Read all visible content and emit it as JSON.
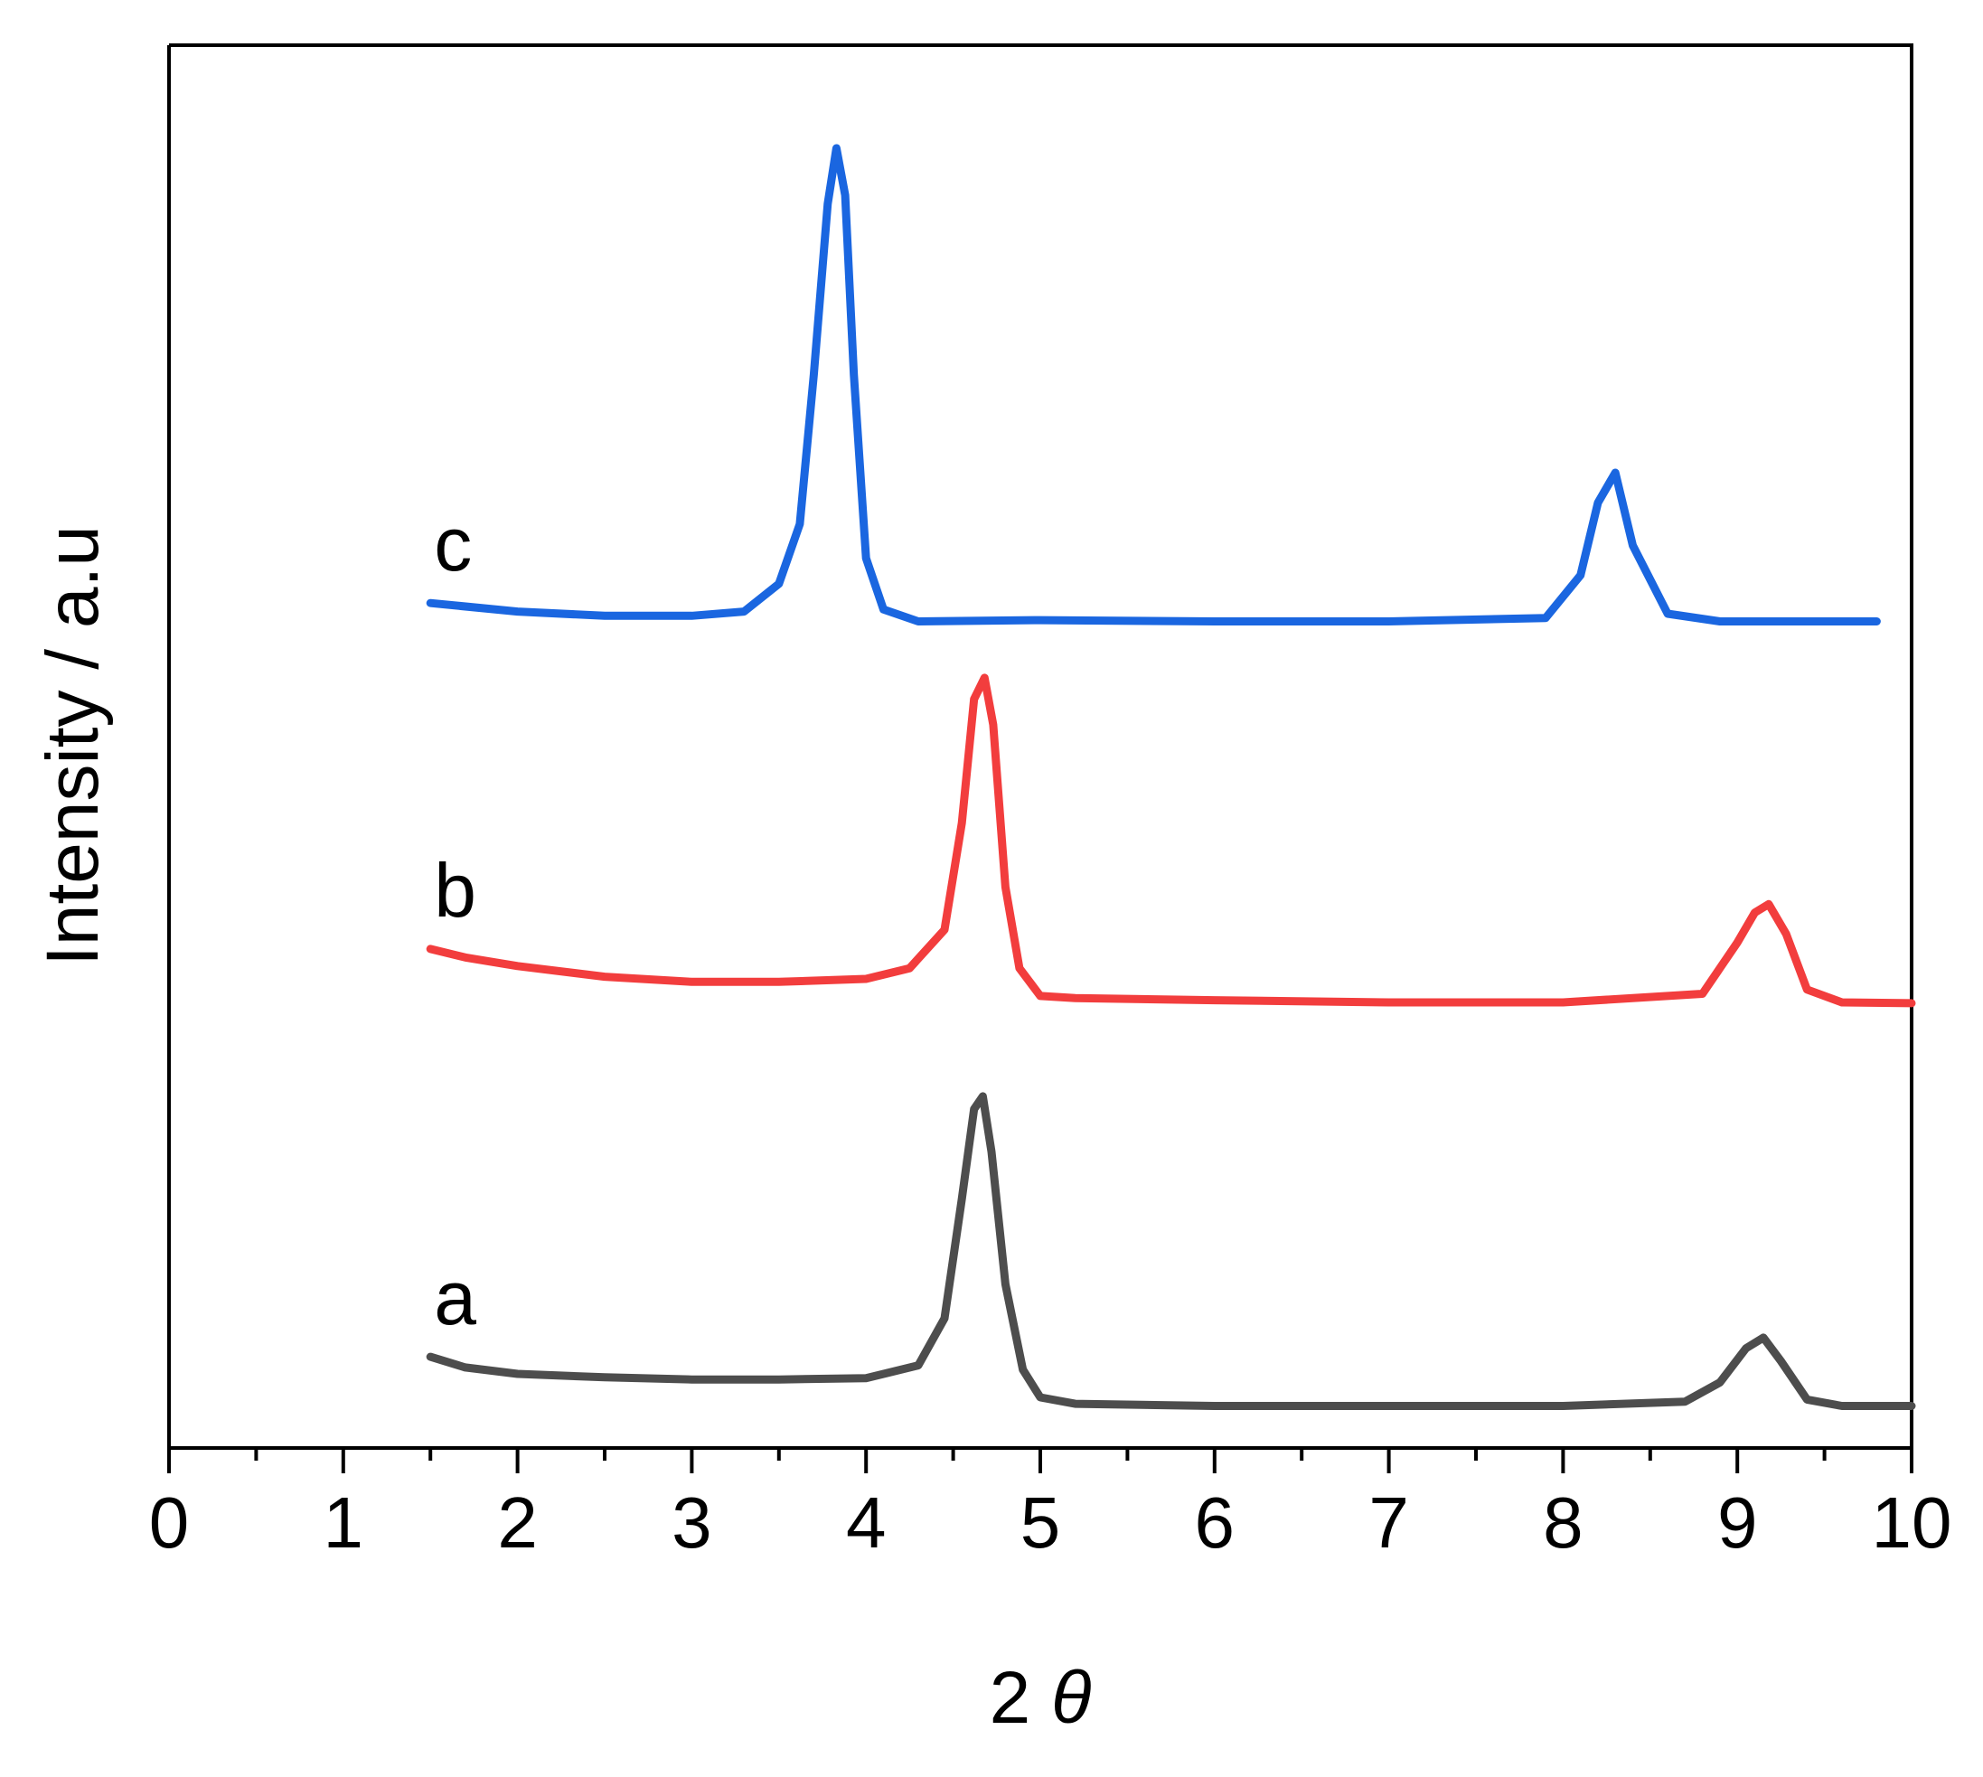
{
  "chart_data": {
    "type": "line",
    "xlabel": "2 θ",
    "ylabel": "Intensity / a.u",
    "xlim": [
      0,
      10
    ],
    "x_ticks": [
      "0",
      "1",
      "2",
      "3",
      "4",
      "5",
      "6",
      "7",
      "8",
      "9",
      "10"
    ],
    "y_ticks_shown": false,
    "grid": false,
    "legend": "inline labels",
    "series": [
      {
        "name": "a",
        "color": "#4d4d4d",
        "x": [
          1.5,
          1.7,
          2.0,
          2.5,
          3.0,
          3.5,
          4.0,
          4.3,
          4.45,
          4.55,
          4.62,
          4.67,
          4.72,
          4.8,
          4.9,
          5.0,
          5.2,
          6.0,
          7.0,
          8.0,
          8.7,
          8.9,
          9.05,
          9.15,
          9.25,
          9.4,
          9.6,
          10.0
        ],
        "y": [
          1.5,
          1.25,
          1.1,
          1.02,
          0.97,
          0.97,
          1.0,
          1.3,
          2.4,
          5.2,
          7.3,
          7.6,
          6.3,
          3.2,
          1.2,
          0.55,
          0.4,
          0.35,
          0.35,
          0.35,
          0.45,
          0.9,
          1.7,
          1.95,
          1.4,
          0.5,
          0.35,
          0.35
        ]
      },
      {
        "name": "b",
        "color": "#f23d3d",
        "x": [
          1.5,
          1.7,
          2.0,
          2.5,
          3.0,
          3.5,
          4.0,
          4.25,
          4.45,
          4.55,
          4.62,
          4.68,
          4.73,
          4.8,
          4.88,
          5.0,
          5.2,
          6.0,
          7.0,
          8.0,
          8.8,
          9.0,
          9.1,
          9.18,
          9.28,
          9.4,
          9.6,
          10.0
        ],
        "y": [
          11.05,
          10.85,
          10.65,
          10.4,
          10.28,
          10.28,
          10.35,
          10.6,
          11.5,
          14.0,
          16.9,
          17.4,
          16.3,
          12.5,
          10.6,
          9.95,
          9.9,
          9.85,
          9.8,
          9.8,
          10.0,
          11.2,
          11.9,
          12.1,
          11.4,
          10.1,
          9.8,
          9.78
        ]
      },
      {
        "name": "c",
        "color": "#1a66e0",
        "x": [
          1.5,
          2.0,
          2.5,
          3.0,
          3.3,
          3.5,
          3.62,
          3.7,
          3.78,
          3.83,
          3.88,
          3.93,
          4.0,
          4.1,
          4.3,
          5.0,
          6.0,
          7.0,
          7.9,
          8.1,
          8.2,
          8.3,
          8.4,
          8.6,
          8.9,
          9.3,
          9.8
        ],
        "y": [
          19.15,
          18.95,
          18.85,
          18.85,
          18.95,
          19.6,
          21.0,
          24.5,
          28.5,
          29.8,
          28.7,
          24.5,
          20.2,
          19.0,
          18.72,
          18.75,
          18.72,
          18.72,
          18.8,
          19.8,
          21.5,
          22.2,
          20.5,
          18.9,
          18.72,
          18.72,
          18.72
        ]
      }
    ]
  }
}
